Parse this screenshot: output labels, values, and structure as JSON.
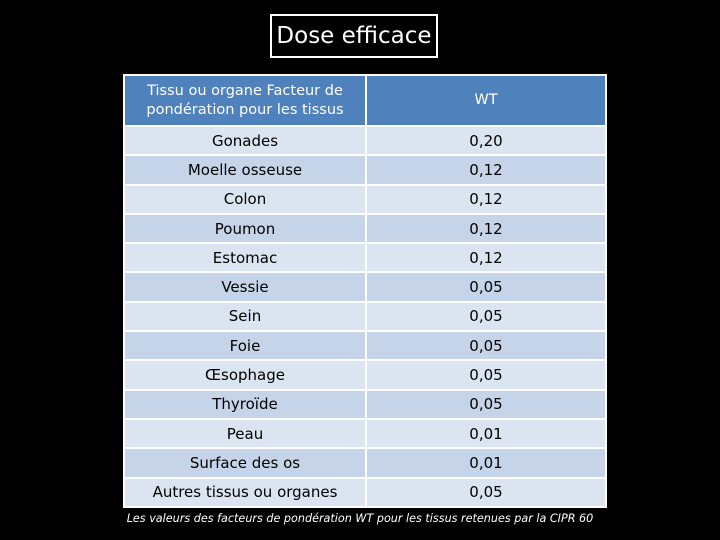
{
  "title": "Dose efficace",
  "table": {
    "headers": [
      "Tissu ou organe Facteur de pondération pour les tissus",
      "WT"
    ],
    "rows": [
      {
        "tissue": "Gonades",
        "wt": "0,20"
      },
      {
        "tissue": "Moelle osseuse",
        "wt": "0,12"
      },
      {
        "tissue": "Colon",
        "wt": "0,12"
      },
      {
        "tissue": "Poumon",
        "wt": "0,12"
      },
      {
        "tissue": "Estomac",
        "wt": "0,12"
      },
      {
        "tissue": "Vessie",
        "wt": "0,05"
      },
      {
        "tissue": "Sein",
        "wt": "0,05"
      },
      {
        "tissue": "Foie",
        "wt": "0,05"
      },
      {
        "tissue": "Œsophage",
        "wt": "0,05"
      },
      {
        "tissue": "Thyroïde",
        "wt": "0,05"
      },
      {
        "tissue": "Peau",
        "wt": "0,01"
      },
      {
        "tissue": "Surface des os",
        "wt": "0,01"
      },
      {
        "tissue": "Autres tissus ou organes",
        "wt": "0,05"
      }
    ]
  },
  "footnote": "Les valeurs des facteurs de pondération WT pour les tissus retenues par la CIPR 60",
  "colors": {
    "background": "#000000",
    "header": "#4f81bd",
    "row_light": "#dbe5f1",
    "row_dark": "#c6d4e9"
  }
}
